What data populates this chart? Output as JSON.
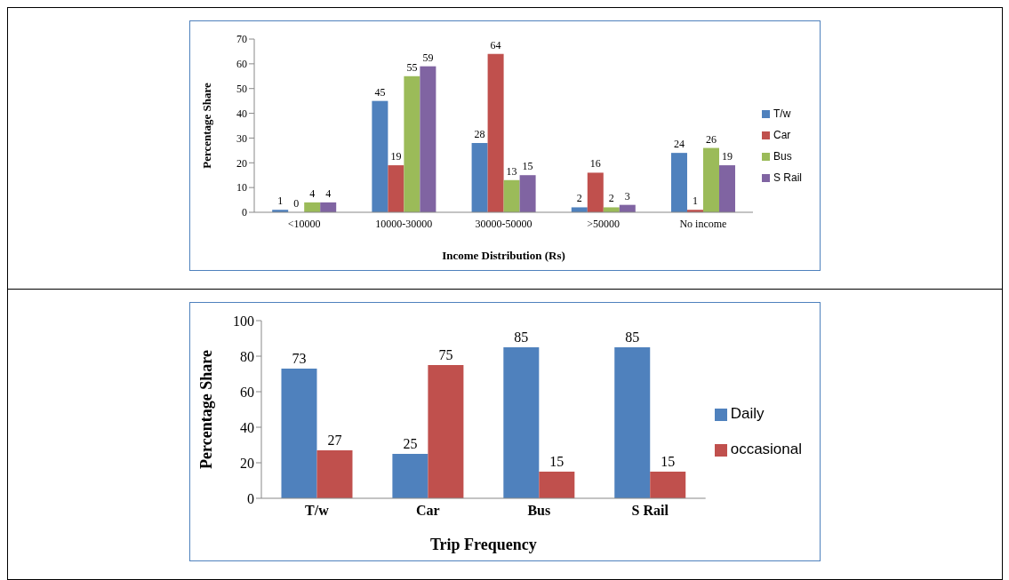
{
  "chart_data": [
    {
      "type": "bar",
      "xlabel": "Income Distribution (Rs)",
      "ylabel": "Percentage Share",
      "categories": [
        "<10000",
        "10000-30000",
        "30000-50000",
        ">50000",
        "No income"
      ],
      "series": [
        {
          "name": "T/w",
          "color": "#4f81bd",
          "values": [
            1,
            45,
            28,
            2,
            24
          ]
        },
        {
          "name": "Car",
          "color": "#c0504d",
          "values": [
            0,
            19,
            64,
            16,
            1
          ]
        },
        {
          "name": "Bus",
          "color": "#9bbb59",
          "values": [
            4,
            55,
            13,
            2,
            26
          ]
        },
        {
          "name": "S Rail",
          "color": "#8064a2",
          "values": [
            4,
            59,
            15,
            3,
            19
          ]
        }
      ],
      "ylim": [
        0,
        70
      ],
      "yticks": [
        0,
        10,
        20,
        30,
        40,
        50,
        60,
        70
      ],
      "legend": "right",
      "data_labels": true
    },
    {
      "type": "bar",
      "xlabel": "Trip Frequency",
      "ylabel": "Percentage Share",
      "categories": [
        "T/w",
        "Car",
        "Bus",
        "S Rail"
      ],
      "series": [
        {
          "name": "Daily",
          "color": "#4f81bd",
          "values": [
            73,
            25,
            85,
            85
          ]
        },
        {
          "name": "occasional",
          "color": "#c0504d",
          "values": [
            27,
            75,
            15,
            15
          ]
        }
      ],
      "ylim": [
        0,
        100
      ],
      "yticks": [
        0,
        20,
        40,
        60,
        80,
        100
      ],
      "legend": "right",
      "data_labels": true
    }
  ]
}
